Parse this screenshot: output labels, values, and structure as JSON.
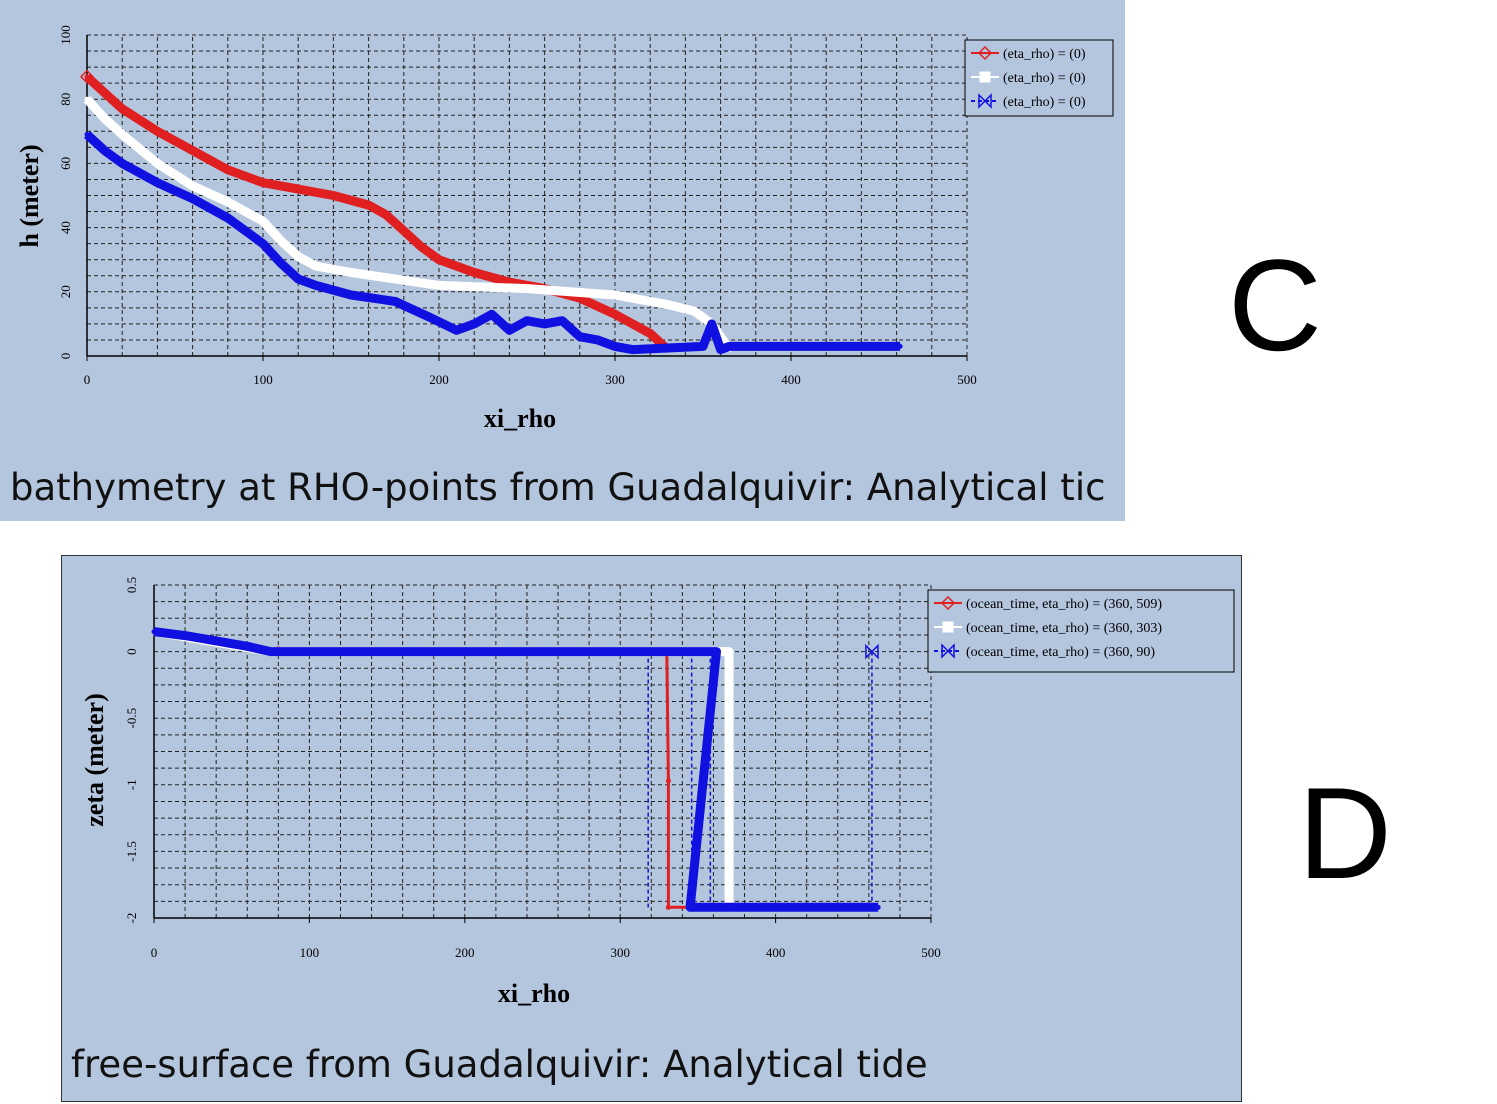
{
  "figure": {
    "letters": {
      "c": "C",
      "d": "D"
    }
  },
  "chart_data": [
    {
      "id": "C",
      "type": "line",
      "caption": "bathymetry at RHO-points from Guadalquivir: Analytical tic",
      "xlabel": "xi_rho",
      "ylabel": "h (meter)",
      "xlim": [
        0,
        500
      ],
      "ylim": [
        0,
        100
      ],
      "xticks": [
        0,
        100,
        200,
        300,
        400,
        500
      ],
      "yticks": [
        0,
        20,
        40,
        60,
        80,
        100
      ],
      "grid": true,
      "legend_position": "top-right",
      "series": [
        {
          "name": "(eta_rho) = (0)",
          "color": "#e02020",
          "marker": "diamond",
          "x": [
            0,
            10,
            20,
            40,
            60,
            80,
            100,
            120,
            140,
            160,
            170,
            180,
            190,
            200,
            220,
            240,
            260,
            280,
            300,
            310,
            320,
            330
          ],
          "y": [
            87,
            82,
            77,
            70,
            64,
            58,
            54,
            52,
            50,
            47,
            44,
            39,
            34,
            30,
            26,
            23,
            21,
            18,
            13,
            10,
            7,
            2
          ]
        },
        {
          "name": "(eta_rho) = (0)",
          "color": "#ffffff",
          "marker": "square",
          "x": [
            0,
            10,
            20,
            40,
            60,
            80,
            100,
            110,
            120,
            130,
            150,
            200,
            250,
            300,
            330,
            345,
            355,
            360,
            365
          ],
          "y": [
            80,
            74,
            69,
            60,
            53,
            48,
            42,
            36,
            31,
            28,
            26,
            22,
            21,
            19,
            16,
            14,
            10,
            6,
            2
          ]
        },
        {
          "name": "(eta_rho) = (0)",
          "color": "#1010e0",
          "marker": "bowtie",
          "x": [
            0,
            10,
            20,
            40,
            60,
            80,
            100,
            110,
            120,
            130,
            150,
            175,
            195,
            210,
            220,
            230,
            240,
            250,
            260,
            270,
            280,
            290,
            300,
            310,
            350,
            355,
            360,
            365,
            370,
            400,
            462
          ],
          "y": [
            69,
            64,
            60,
            54,
            49,
            43,
            35,
            29,
            24,
            22,
            19,
            17,
            12,
            8,
            10,
            13,
            8,
            11,
            10,
            11,
            6,
            5,
            3,
            2,
            3,
            10,
            2,
            3,
            3,
            3,
            3
          ]
        }
      ]
    },
    {
      "id": "D",
      "type": "line",
      "caption": "free-surface from Guadalquivir: Analytical tide",
      "xlabel": "xi_rho",
      "ylabel": "zeta (meter)",
      "xlim": [
        0,
        500
      ],
      "ylim": [
        -2,
        0.5
      ],
      "xticks": [
        0,
        100,
        200,
        300,
        400,
        500
      ],
      "yticks": [
        -2,
        -1.5,
        -1,
        -0.5,
        0,
        0.5
      ],
      "grid": true,
      "legend_position": "top-right",
      "series": [
        {
          "name": "(ocean_time, eta_rho) = (360, 509)",
          "color": "#e02020",
          "marker": "diamond",
          "x": [
            0,
            20,
            40,
            60,
            75,
            80,
            320,
            330,
            331,
            331,
            353
          ],
          "y": [
            0.15,
            0.12,
            0.08,
            0.04,
            0.01,
            0.02,
            0.0,
            0.0,
            -0.97,
            -1.92,
            -1.92
          ]
        },
        {
          "name": "(ocean_time, eta_rho) = (360, 303)",
          "color": "#ffffff",
          "marker": "square",
          "x": [
            0,
            75,
            320,
            370,
            370,
            372
          ],
          "y": [
            0.15,
            0.0,
            0.0,
            0.0,
            -1.92,
            -1.92
          ]
        },
        {
          "name": "(ocean_time, eta_rho) = (360, 90)",
          "color": "#1010e0",
          "marker": "bowtie",
          "x": [
            0,
            20,
            40,
            60,
            75,
            318,
            320,
            346,
            348,
            362,
            345,
            358,
            462,
            466
          ],
          "y": [
            0.15,
            0.12,
            0.08,
            0.04,
            0.0,
            0.0,
            0.0,
            0.0,
            0.0,
            0.0,
            -1.92,
            -1.92,
            -1.92,
            -1.92
          ]
        }
      ]
    }
  ]
}
